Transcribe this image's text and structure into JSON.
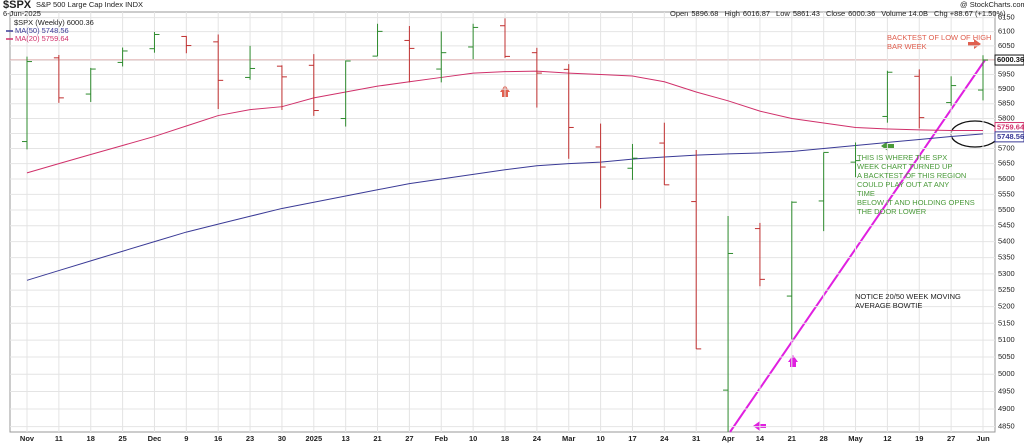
{
  "chart_data": {
    "type": "ohlc",
    "title": "$SPX",
    "subtitle": "S&P 500 Large Cap Index INDX",
    "date": "6-Jun-2025",
    "credit": "@ StockCharts.com",
    "header_labels": [
      "Open",
      "High",
      "Low",
      "Close"
    ],
    "volume": "Volume 14.0B",
    "change": "Chg +88.67 (+1.50%)",
    "legend_label": "$SPX (Weekly)",
    "categories": [
      "Nov",
      "11",
      "18",
      "25",
      "Dec",
      "9",
      "16",
      "23",
      "30",
      "2025",
      "13",
      "21",
      "27",
      "Feb",
      "10",
      "18",
      "24",
      "Mar",
      "10",
      "17",
      "24",
      "31",
      "Apr",
      "14",
      "21",
      "28",
      "May",
      "12",
      "19",
      "27",
      "Jun"
    ],
    "open": [
      5723,
      6008,
      5883,
      5992,
      6040,
      6083,
      6064,
      5940,
      5979,
      5982,
      5800,
      6014,
      6069,
      5969,
      6046,
      6121,
      6026,
      5968,
      5705,
      5635,
      5718,
      5527,
      4954,
      5441,
      5232,
      5529,
      5655,
      5807,
      5944,
      5854,
      5896.68
    ],
    "high": [
      6012,
      6018,
      5973,
      6044,
      6099,
      6085,
      6090,
      6050,
      5982,
      6021,
      5999,
      6128,
      6120,
      6101,
      6128,
      6147,
      6043,
      5986,
      5783,
      5715,
      5786,
      5695,
      5481,
      5459,
      5528,
      5687,
      5720,
      5963,
      5968,
      5944,
      6016.87
    ],
    "low": [
      5697,
      5853,
      5856,
      5978,
      6026,
      6024,
      5832,
      5932,
      5829,
      5809,
      5773,
      6014,
      5923,
      5923,
      6003,
      6008,
      5837,
      5666,
      5505,
      5597,
      5581,
      5074,
      4835,
      5262,
      5102,
      5433,
      5606,
      5786,
      5767,
      5843,
      5861.43
    ],
    "close": [
      5995,
      5870,
      5969,
      6032,
      6090,
      6051,
      5930,
      5971,
      5942,
      5827,
      5997,
      6101,
      6041,
      6026,
      6115,
      6013,
      5955,
      5770,
      5639,
      5668,
      5581,
      5074,
      5363,
      5283,
      5525,
      5687,
      5660,
      5958,
      5803,
      5912,
      6000.36
    ],
    "up_color": "#2e8b2e",
    "down_color": "#c03030",
    "series": [
      {
        "name": "MA(50)",
        "color": "#3a3a96",
        "values": [
          5280,
          5310,
          5340,
          5370,
          5400,
          5430,
          5455,
          5480,
          5505,
          5525,
          5545,
          5565,
          5585,
          5600,
          5615,
          5630,
          5643,
          5650,
          5655,
          5665,
          5672,
          5678,
          5682,
          5685,
          5690,
          5700,
          5710,
          5720,
          5730,
          5740,
          5748.56
        ]
      },
      {
        "name": "MA(20)",
        "color": "#d0306a",
        "values": [
          5620,
          5650,
          5680,
          5710,
          5740,
          5775,
          5810,
          5830,
          5840,
          5870,
          5890,
          5910,
          5925,
          5940,
          5955,
          5960,
          5962,
          5955,
          5950,
          5945,
          5925,
          5890,
          5860,
          5825,
          5800,
          5785,
          5770,
          5765,
          5762,
          5760,
          5759.64
        ]
      }
    ],
    "log_scale": true,
    "grid": true,
    "ylim": [
      4835,
      6170
    ],
    "yticks": [
      6150,
      6100,
      6050,
      6000,
      5950,
      5900,
      5850,
      5800,
      5750,
      5700,
      5650,
      5600,
      5550,
      5500,
      5450,
      5400,
      5350,
      5300,
      5250,
      5200,
      5150,
      5100,
      5050,
      5000,
      4950,
      4900,
      4850
    ],
    "annotations": [
      {
        "color": "#e06050",
        "lines": [
          "BACKTEST OF LOW OF HIGH",
          "BAR WEEK"
        ]
      },
      {
        "color": "#4a9a3a",
        "lines": [
          "THIS IS WHERE THE SPX",
          "WEEK CHART TURNED UP",
          "A BACKTEST OF THIS REGION",
          "COULD PLAY OUT AT ANY",
          "TIME",
          "BELOW IT AND HOLDING OPENS",
          "THE DOOR LOWER"
        ]
      },
      {
        "color": "#222222",
        "lines": [
          "NOTICE 20/50 WEEK MOVING",
          "AVERAGE BOWTIE"
        ]
      }
    ]
  }
}
